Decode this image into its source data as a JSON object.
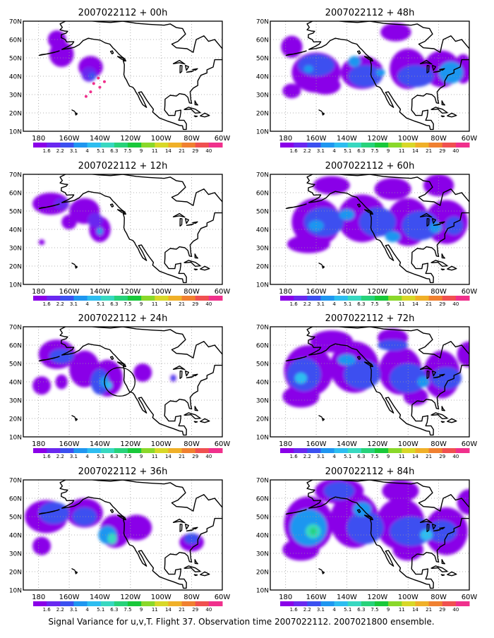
{
  "caption": "Signal Variance for u,v,T. Flight 37. Observation time 2007022112. 2007021800 ensemble.",
  "x_ticks": [
    "180",
    "160W",
    "140W",
    "120W",
    "100W",
    "80W",
    "60W"
  ],
  "y_ticks": [
    "70N",
    "60N",
    "50N",
    "40N",
    "30N",
    "20N",
    "10N"
  ],
  "colorbar_labels": [
    "1.6",
    "2.2",
    "3.1",
    "4",
    "5.1",
    "6.3",
    "7.5",
    "9",
    "11",
    "14",
    "21",
    "29",
    "40"
  ],
  "colorbar_colors": [
    "#8a00e8",
    "#6a28f0",
    "#3c50f0",
    "#1f96f0",
    "#2dbdf0",
    "#38d8c0",
    "#27d27a",
    "#19c83a",
    "#8ad82a",
    "#d8d828",
    "#f0b028",
    "#f08030",
    "#f05050",
    "#f0308c"
  ],
  "panels": [
    {
      "title": "2007022112 + 00h"
    },
    {
      "title": "2007022112 + 48h"
    },
    {
      "title": "2007022112 + 12h"
    },
    {
      "title": "2007022112 + 60h"
    },
    {
      "title": "2007022112 + 24h"
    },
    {
      "title": "2007022112 + 72h"
    },
    {
      "title": "2007022112 + 36h"
    },
    {
      "title": "2007022112 + 84h"
    }
  ]
}
